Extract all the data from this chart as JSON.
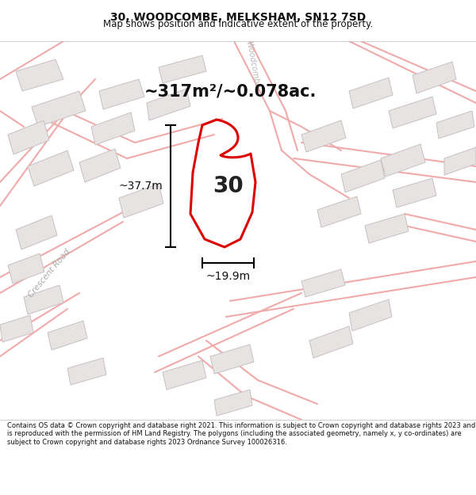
{
  "title": "30, WOODCOMBE, MELKSHAM, SN12 7SD",
  "subtitle": "Map shows position and indicative extent of the property.",
  "area_text": "~317m²/~0.078ac.",
  "width_text": "~19.9m",
  "height_text": "~37.7m",
  "number_text": "30",
  "footer_text": "Contains OS data © Crown copyright and database right 2021. This information is subject to Crown copyright and database rights 2023 and is reproduced with the permission of HM Land Registry. The polygons (including the associated geometry, namely x, y co-ordinates) are subject to Crown copyright and database rights 2023 Ordnance Survey 100026316.",
  "map_bg": "#f7f4f4",
  "plot_color": "#dd0000",
  "road_color": "#f0aaaa",
  "building_color": "#e8e3e3",
  "building_edge": "#c8c0c0",
  "header_bg": "#ffffff",
  "footer_bg": "#ffffff",
  "road_lw": 1.5,
  "plot_lw": 2.2,
  "title_fontsize": 10,
  "subtitle_fontsize": 8.5,
  "area_fontsize": 15,
  "number_fontsize": 20,
  "dim_fontsize": 10,
  "footer_fontsize": 6.0,
  "road_label_fontsize": 7.5
}
